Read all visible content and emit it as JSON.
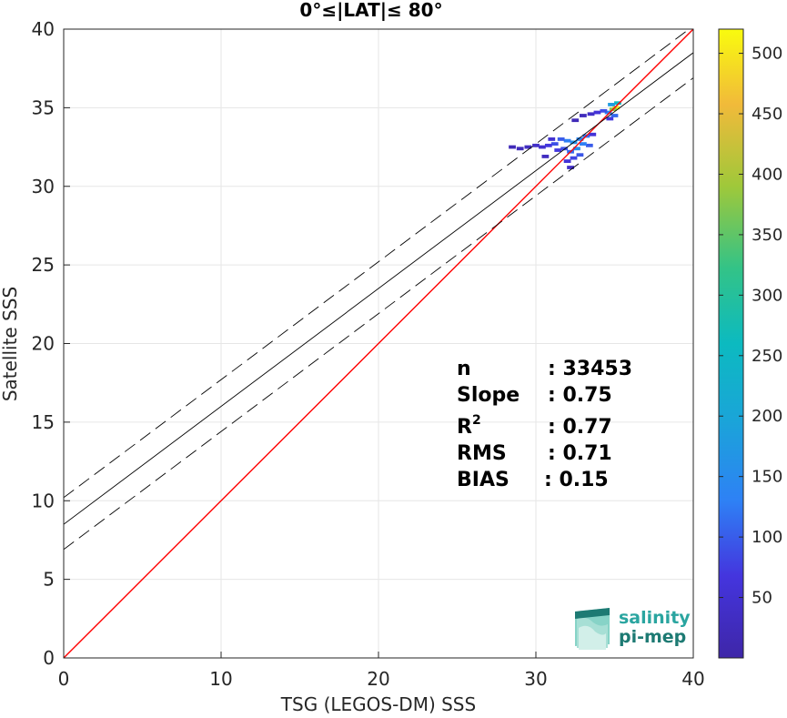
{
  "chart_data": {
    "type": "scatter",
    "subtype": "density-heatmap",
    "title": "0°≤|LAT|≤ 80°",
    "xlabel": "TSG (LEGOS-DM) SSS",
    "ylabel": "Satellite SSS",
    "xlim": [
      0,
      40
    ],
    "ylim": [
      0,
      40
    ],
    "xticks": [
      0,
      10,
      20,
      30,
      40
    ],
    "yticks": [
      0,
      5,
      10,
      15,
      20,
      25,
      30,
      35,
      40
    ],
    "grid": true,
    "colorbar": {
      "min": 0,
      "max": 520,
      "ticks": [
        50,
        100,
        150,
        200,
        250,
        300,
        350,
        400,
        450,
        500
      ],
      "colormap": "parula"
    },
    "lines": [
      {
        "name": "identity",
        "slope": 1,
        "intercept": 0,
        "color": "#ff0000",
        "style": "solid"
      },
      {
        "name": "regression",
        "slope": 0.75,
        "intercept": 8.5,
        "color": "#000000",
        "style": "solid"
      },
      {
        "name": "regression-upper",
        "slope": 0.75,
        "intercept": 10.2,
        "color": "#000000",
        "style": "dashed"
      },
      {
        "name": "regression-lower",
        "slope": 0.75,
        "intercept": 6.9,
        "color": "#000000",
        "style": "dashed"
      }
    ],
    "density": [
      {
        "x": 35.1,
        "y": 35.0,
        "count": 500
      },
      {
        "x": 34.9,
        "y": 34.9,
        "count": 380
      },
      {
        "x": 35.2,
        "y": 35.3,
        "count": 260
      },
      {
        "x": 34.8,
        "y": 35.2,
        "count": 180
      },
      {
        "x": 34.6,
        "y": 34.7,
        "count": 140
      },
      {
        "x": 34.3,
        "y": 34.8,
        "count": 90
      },
      {
        "x": 33.9,
        "y": 34.7,
        "count": 60
      },
      {
        "x": 33.5,
        "y": 34.6,
        "count": 40
      },
      {
        "x": 33.0,
        "y": 34.5,
        "count": 25
      },
      {
        "x": 32.5,
        "y": 34.2,
        "count": 20
      },
      {
        "x": 34.7,
        "y": 34.3,
        "count": 70
      },
      {
        "x": 35.0,
        "y": 34.5,
        "count": 110
      },
      {
        "x": 33.2,
        "y": 33.2,
        "count": 120
      },
      {
        "x": 32.8,
        "y": 33.0,
        "count": 140
      },
      {
        "x": 32.4,
        "y": 32.8,
        "count": 160
      },
      {
        "x": 32.0,
        "y": 32.9,
        "count": 130
      },
      {
        "x": 31.6,
        "y": 33.0,
        "count": 100
      },
      {
        "x": 31.2,
        "y": 32.7,
        "count": 90
      },
      {
        "x": 30.8,
        "y": 32.6,
        "count": 70
      },
      {
        "x": 30.4,
        "y": 32.5,
        "count": 50
      },
      {
        "x": 30.0,
        "y": 32.6,
        "count": 40
      },
      {
        "x": 29.5,
        "y": 32.5,
        "count": 30
      },
      {
        "x": 29.0,
        "y": 32.4,
        "count": 25
      },
      {
        "x": 28.5,
        "y": 32.5,
        "count": 20
      },
      {
        "x": 32.6,
        "y": 32.4,
        "count": 150
      },
      {
        "x": 32.2,
        "y": 32.2,
        "count": 110
      },
      {
        "x": 32.8,
        "y": 32.0,
        "count": 95
      },
      {
        "x": 32.4,
        "y": 31.8,
        "count": 80
      },
      {
        "x": 32.0,
        "y": 31.6,
        "count": 60
      },
      {
        "x": 32.2,
        "y": 31.2,
        "count": 40
      },
      {
        "x": 33.4,
        "y": 32.6,
        "count": 100
      },
      {
        "x": 33.0,
        "y": 32.7,
        "count": 130
      },
      {
        "x": 31.8,
        "y": 32.4,
        "count": 90
      },
      {
        "x": 31.4,
        "y": 32.3,
        "count": 70
      },
      {
        "x": 33.6,
        "y": 33.3,
        "count": 60
      },
      {
        "x": 31.0,
        "y": 33.0,
        "count": 50
      },
      {
        "x": 30.6,
        "y": 31.9,
        "count": 30
      }
    ]
  },
  "stats": {
    "n": {
      "label": "n",
      "value": ": 33453"
    },
    "slope": {
      "label": "Slope",
      "value": ": 0.75"
    },
    "r2": {
      "label": "R",
      "sup": "2",
      "value": ": 0.77"
    },
    "rms": {
      "label": "RMS",
      "value": ": 0.71"
    },
    "bias": {
      "label": "BIAS",
      "value": ": 0.15"
    }
  },
  "logo": {
    "line1": "salinity",
    "line2": "pi-mep",
    "color1": "#2aa5a0",
    "color2": "#1d7a73"
  }
}
